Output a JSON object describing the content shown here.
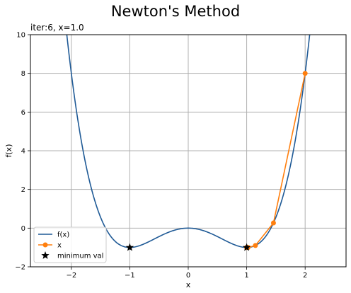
{
  "figure": {
    "suptitle": "Newton's Method",
    "axes_title": "iter:6, x=1.0"
  },
  "chart_data": {
    "type": "line",
    "xlabel": "x",
    "ylabel": "f(x)",
    "xlim": [
      -2.7,
      2.7
    ],
    "ylim": [
      -2,
      10
    ],
    "xticks": [
      -2,
      -1,
      0,
      1,
      2
    ],
    "yticks": [
      -2,
      0,
      2,
      4,
      6,
      8,
      10
    ],
    "grid": true,
    "legend_position": "lower-left",
    "series": [
      {
        "name": "f(x)",
        "type": "line",
        "function": "x^4 - 2x^2",
        "x_range": [
          -2.7,
          2.7
        ],
        "color": "#1f5a96"
      },
      {
        "name": "x",
        "type": "line-marker",
        "color": "#ff7f0e",
        "points": [
          {
            "x": 2.0,
            "y": 8.0
          },
          {
            "x": 1.4583,
            "y": 0.2694
          },
          {
            "x": 1.1492,
            "y": -0.8971
          },
          {
            "x": 1.0235,
            "y": -0.9978
          },
          {
            "x": 1.0008,
            "y": -1.0
          },
          {
            "x": 1.0,
            "y": -1.0
          },
          {
            "x": 1.0,
            "y": -1.0
          }
        ]
      },
      {
        "name": "minimum val",
        "type": "scatter-star",
        "color": "#000000",
        "points": [
          {
            "x": -1.0,
            "y": -1.0
          },
          {
            "x": 1.0,
            "y": -1.0
          }
        ]
      }
    ]
  }
}
